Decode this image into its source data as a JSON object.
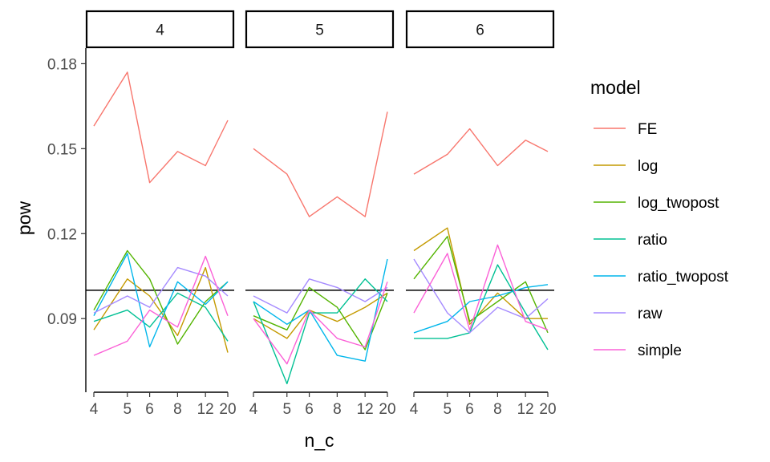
{
  "chart_data": {
    "type": "line",
    "facet_variable": "n",
    "facets": [
      {
        "label": "4",
        "series": [
          {
            "name": "FE",
            "color": "#F8766D",
            "y": [
              0.158,
              0.177,
              0.138,
              0.149,
              0.144,
              0.16
            ]
          },
          {
            "name": "log",
            "color": "#C49A00",
            "y": [
              0.086,
              0.104,
              0.098,
              0.084,
              0.108,
              0.078
            ]
          },
          {
            "name": "log_twopost",
            "color": "#53B400",
            "y": [
              0.093,
              0.114,
              0.104,
              0.081,
              0.096,
              0.103
            ]
          },
          {
            "name": "ratio",
            "color": "#00C094",
            "y": [
              0.089,
              0.093,
              0.087,
              0.099,
              0.094,
              0.082
            ]
          },
          {
            "name": "ratio_twopost",
            "color": "#00B6EB",
            "y": [
              0.091,
              0.113,
              0.08,
              0.103,
              0.095,
              0.103
            ]
          },
          {
            "name": "raw",
            "color": "#A58AFF",
            "y": [
              0.092,
              0.098,
              0.094,
              0.108,
              0.105,
              0.098
            ]
          },
          {
            "name": "simple",
            "color": "#FB61D7",
            "y": [
              0.077,
              0.082,
              0.093,
              0.087,
              0.112,
              0.091
            ]
          }
        ]
      },
      {
        "label": "5",
        "series": [
          {
            "name": "FE",
            "color": "#F8766D",
            "y": [
              0.15,
              0.141,
              0.126,
              0.133,
              0.126,
              0.163
            ]
          },
          {
            "name": "log",
            "color": "#C49A00",
            "y": [
              0.09,
              0.083,
              0.093,
              0.089,
              0.094,
              0.099
            ]
          },
          {
            "name": "log_twopost",
            "color": "#53B400",
            "y": [
              0.091,
              0.086,
              0.101,
              0.094,
              0.079,
              0.099
            ]
          },
          {
            "name": "ratio",
            "color": "#00C094",
            "y": [
              0.096,
              0.067,
              0.092,
              0.092,
              0.104,
              0.096
            ]
          },
          {
            "name": "ratio_twopost",
            "color": "#00B6EB",
            "y": [
              0.096,
              0.088,
              0.093,
              0.077,
              0.075,
              0.111
            ]
          },
          {
            "name": "raw",
            "color": "#A58AFF",
            "y": [
              0.098,
              0.092,
              0.104,
              0.101,
              0.096,
              0.101
            ]
          },
          {
            "name": "simple",
            "color": "#FB61D7",
            "y": [
              0.09,
              0.074,
              0.093,
              0.083,
              0.08,
              0.103
            ]
          }
        ]
      },
      {
        "label": "6",
        "series": [
          {
            "name": "FE",
            "color": "#F8766D",
            "y": [
              0.141,
              0.148,
              0.157,
              0.144,
              0.153,
              0.149
            ]
          },
          {
            "name": "log",
            "color": "#C49A00",
            "y": [
              0.114,
              0.122,
              0.088,
              0.099,
              0.09,
              0.09
            ]
          },
          {
            "name": "log_twopost",
            "color": "#53B400",
            "y": [
              0.104,
              0.119,
              0.089,
              0.096,
              0.103,
              0.085
            ]
          },
          {
            "name": "ratio",
            "color": "#00C094",
            "y": [
              0.083,
              0.083,
              0.085,
              0.109,
              0.092,
              0.079
            ]
          },
          {
            "name": "ratio_twopost",
            "color": "#00B6EB",
            "y": [
              0.085,
              0.089,
              0.096,
              0.098,
              0.101,
              0.102
            ]
          },
          {
            "name": "raw",
            "color": "#A58AFF",
            "y": [
              0.111,
              0.092,
              0.085,
              0.094,
              0.09,
              0.097
            ]
          },
          {
            "name": "simple",
            "color": "#FB61D7",
            "y": [
              0.092,
              0.113,
              0.086,
              0.116,
              0.089,
              0.086
            ]
          }
        ]
      }
    ],
    "x": [
      4,
      5,
      6,
      8,
      12,
      20
    ],
    "x_scale": "reciprocal",
    "x_ticks": [
      4,
      5,
      6,
      8,
      12,
      20
    ],
    "y_ticks": [
      0.09,
      0.12,
      0.15,
      0.18
    ],
    "y_tick_labels": [
      "0.09",
      "0.12",
      "0.15",
      "0.18"
    ],
    "ylim": [
      0.064,
      0.1855
    ],
    "reference_line": {
      "y": 0.1,
      "color": "#000000"
    },
    "xlabel": "n_c",
    "ylabel": "pow",
    "legend": {
      "title": "model",
      "position": "right",
      "entries": [
        "FE",
        "log",
        "log_twopost",
        "ratio",
        "ratio_twopost",
        "raw",
        "simple"
      ],
      "colors": [
        "#F8766D",
        "#C49A00",
        "#53B400",
        "#00C094",
        "#00B6EB",
        "#A58AFF",
        "#FB61D7"
      ]
    },
    "grid": false
  }
}
